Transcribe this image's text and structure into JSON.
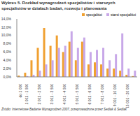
{
  "chart_data": {
    "type": "bar",
    "title": "Wykres 5. Rozkład wynagrodzeń specjalistów i starszych specjalistów w działach badań, rozwoju i planowania",
    "subtitle": "Źródło: Internetowe Badanie Wynagrodzeń 2007, przeprowadzone przez Sedlak & Sedlak",
    "categories": [
      "do 1 000",
      "1 001 - 1 500",
      null,
      "2 001 - 2 500",
      null,
      "3 001 - 3 500",
      null,
      "4 001 - 4 500",
      null,
      "5 001 - 5 500",
      null,
      "6 001 - 6 500",
      null,
      "7 001 - 8 000",
      null,
      "9 001 - 10 000",
      null,
      "15 001 - 20 000",
      null
    ],
    "series": [
      {
        "name": "specjaliści",
        "color": "#f0a030",
        "values": [
          0.3,
          1.0,
          4.0,
          7.0,
          11.8,
          7.5,
          10.0,
          6.0,
          8.5,
          4.0,
          8.5,
          3.0,
          3.5,
          3.0,
          2.0,
          2.0,
          1.5,
          0.5,
          0.2
        ]
      },
      {
        "name": "starsi specjaliści",
        "color": "#c8a8e8",
        "values": [
          0.0,
          0.2,
          0.5,
          1.5,
          3.0,
          4.0,
          7.0,
          7.5,
          11.0,
          7.0,
          9.5,
          6.0,
          6.5,
          7.0,
          4.0,
          5.5,
          10.5,
          2.0,
          1.5
        ]
      }
    ],
    "ylim": [
      0,
      14
    ],
    "yticks": [
      {
        "value": 0,
        "label": "0,0%"
      },
      {
        "value": 2,
        "label": "2,0%"
      },
      {
        "value": 4,
        "label": "4,0%"
      },
      {
        "value": 6,
        "label": "6,0%"
      },
      {
        "value": 8,
        "label": "8,0%"
      },
      {
        "value": 10,
        "label": "10,0%"
      },
      {
        "value": 12,
        "label": "12,0%"
      },
      {
        "value": 14,
        "label": "14,0%"
      }
    ],
    "grid": false,
    "legend": "top-right"
  }
}
